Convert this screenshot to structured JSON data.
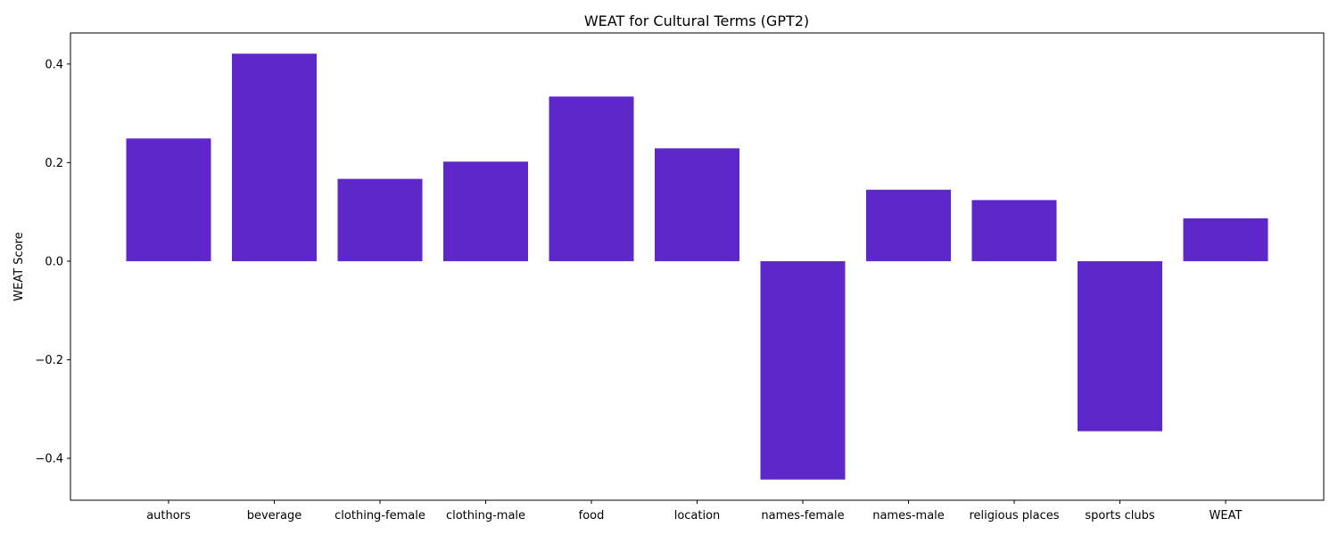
{
  "chart_data": {
    "type": "bar",
    "title": "WEAT for Cultural Terms (GPT2)",
    "xlabel": "",
    "ylabel": "WEAT Score",
    "categories": [
      "authors",
      "beverage",
      "clothing-female",
      "clothing-male",
      "food",
      "location",
      "names-female",
      "names-male",
      "religious places",
      "sports clubs",
      "WEAT"
    ],
    "values": [
      0.249,
      0.421,
      0.167,
      0.202,
      0.334,
      0.229,
      -0.443,
      0.145,
      0.124,
      -0.345,
      0.087
    ],
    "ylim": [
      -0.485,
      0.463
    ],
    "yticks": [
      -0.4,
      -0.2,
      0.0,
      0.2,
      0.4
    ],
    "ytick_labels": [
      "−0.4",
      "−0.2",
      "0.0",
      "0.2",
      "0.4"
    ],
    "bar_color": "#5e27c9",
    "grid": false,
    "legend": "none"
  }
}
